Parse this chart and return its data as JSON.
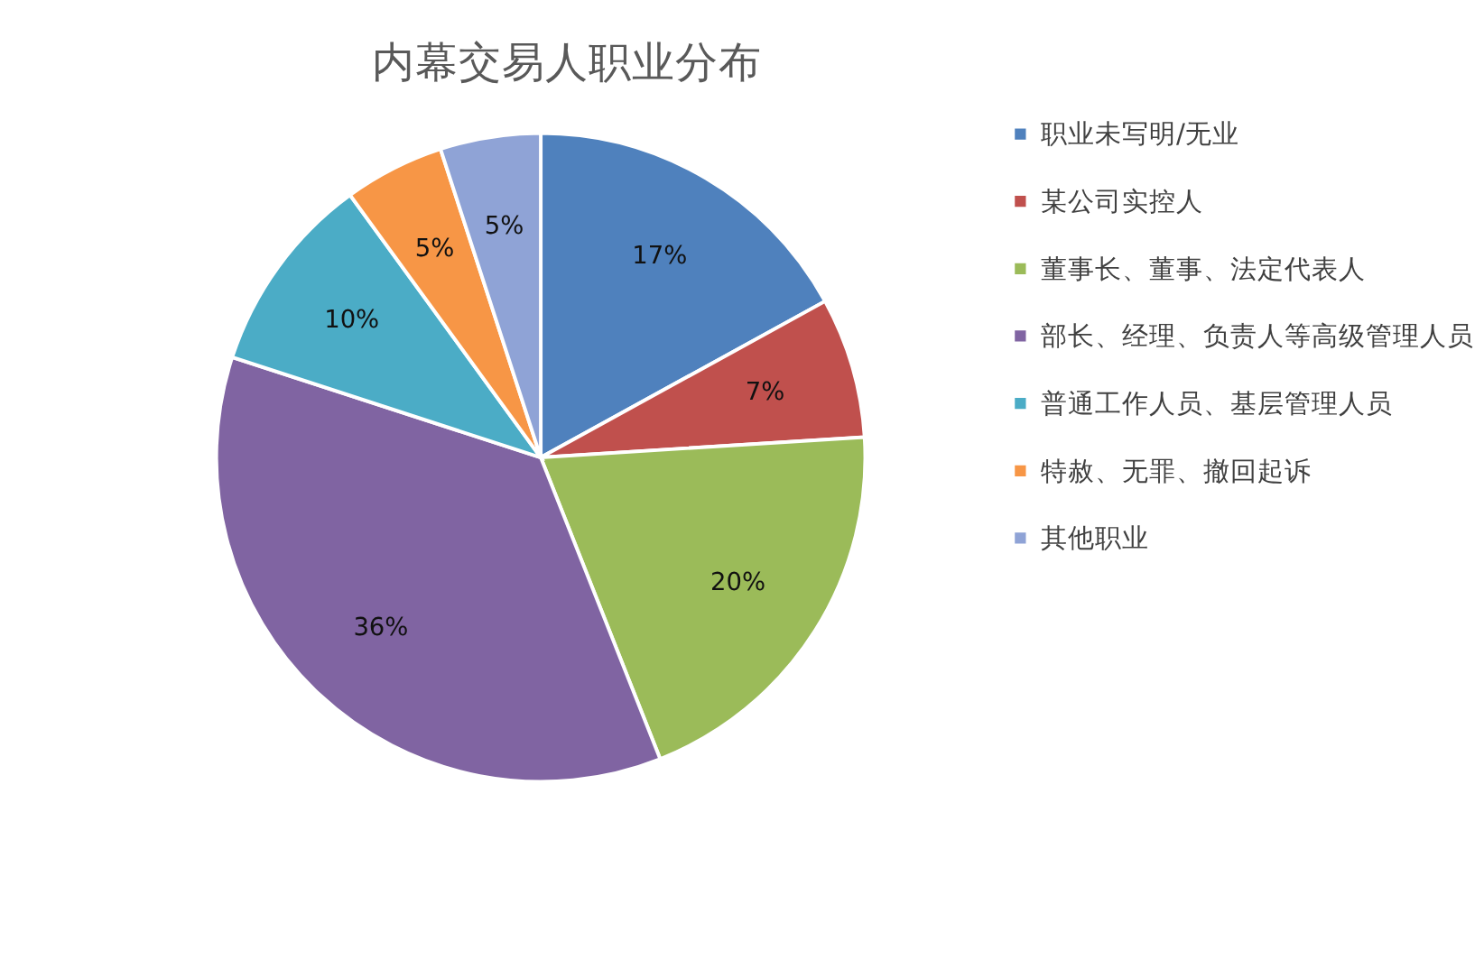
{
  "chart_data": {
    "type": "pie",
    "title": "内幕交易人职业分布",
    "categories": [
      "职业未写明/无业",
      "某公司实控人",
      "董事长、董事、法定代表人",
      "部长、经理、负责人等高级管理人员",
      "普通工作人员、基层管理人员",
      "特赦、无罪、撤回起诉",
      "其他职业"
    ],
    "values": [
      17,
      7,
      20,
      36,
      10,
      5,
      5
    ],
    "value_labels": [
      "17%",
      "7%",
      "20%",
      "36%",
      "10%",
      "5%",
      "5%"
    ],
    "colors": [
      "#4f81bd",
      "#c0504d",
      "#9bbb59",
      "#8064a2",
      "#4bacc6",
      "#f79646",
      "#8fa3d6"
    ],
    "legend": "right"
  }
}
